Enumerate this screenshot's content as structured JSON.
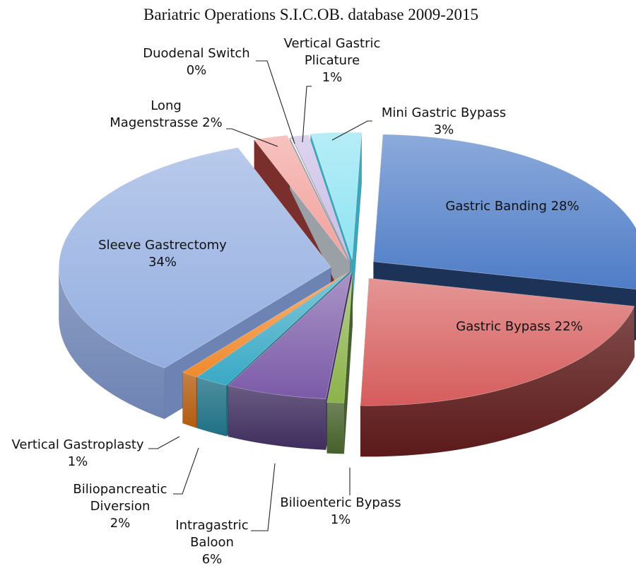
{
  "chart_data": {
    "type": "pie",
    "title": "Bariatric Operations S.I.C.OB. database 2009-2015",
    "slices": [
      {
        "name": "Gastric Banding",
        "value": 28,
        "label_lines": [
          "Gastric Banding 28%"
        ],
        "top": "#4e7cc7",
        "side": "#1c3357"
      },
      {
        "name": "Gastric Bypass",
        "value": 22,
        "label_lines": [
          "Gastric Bypass 22%"
        ],
        "top": "#d65c5c",
        "side": "#5c1a1a"
      },
      {
        "name": "Bilioenteric Bypass",
        "value": 1,
        "label_lines": [
          "Bilioenteric Bypass",
          "1%"
        ],
        "top": "#8bb34a",
        "side": "#45602a"
      },
      {
        "name": "Intragastric Baloon",
        "value": 6,
        "label_lines": [
          "Intragastric",
          "Baloon",
          "6%"
        ],
        "top": "#7b5aa8",
        "side": "#3f2d5e"
      },
      {
        "name": "Biliopancreatic Diversion",
        "value": 2,
        "label_lines": [
          "Biliopancreatic",
          "Diversion",
          "2%"
        ],
        "top": "#3aa9c5",
        "side": "#1f7085"
      },
      {
        "name": "Vertical Gastroplasty",
        "value": 1,
        "label_lines": [
          "Vertical Gastroplasty",
          "1%"
        ],
        "top": "#f08a2c",
        "side": "#b35c10"
      },
      {
        "name": "Sleeve Gastrectomy",
        "value": 34,
        "label_lines": [
          "Sleeve Gastrectomy",
          "34%"
        ],
        "top": "#93aee0",
        "side": "#6d83b3"
      },
      {
        "name": "Long Magenstrasse",
        "value": 2,
        "label_lines": [
          "Long",
          "Magenstrasse 2%"
        ],
        "top": "#f2a19c",
        "side": "#7a2f2c"
      },
      {
        "name": "Duodenal Switch",
        "value": 0,
        "label_lines": [
          "Duodenal Switch",
          "0%"
        ],
        "top": "#ffffff",
        "side": "#9aa0a6"
      },
      {
        "name": "Vertical Gastric Plicature",
        "value": 1,
        "label_lines": [
          "Vertical Gastric",
          "Plicature",
          "1%"
        ],
        "top": "#c9bde6",
        "side": "#8a7bb0"
      },
      {
        "name": "Mini Gastric Bypass",
        "value": 3,
        "label_lines": [
          "Mini Gastric Bypass",
          "3%"
        ],
        "top": "#8fe3f2",
        "side": "#3aa7ba"
      }
    ]
  }
}
